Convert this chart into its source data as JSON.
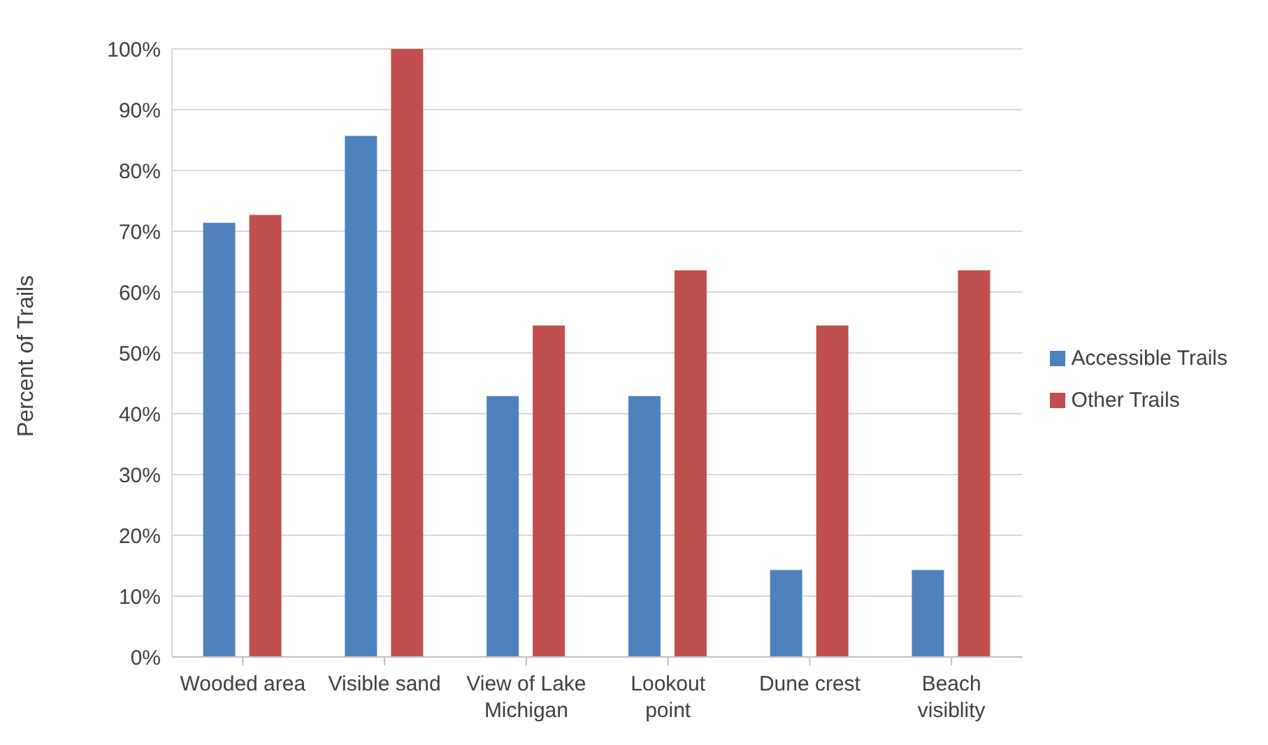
{
  "chart_data": {
    "type": "bar",
    "ylabel": "Percent of Trails",
    "categories": [
      "Wooded area",
      "Visible sand",
      "View of Lake Michigan",
      "Lookout point",
      "Dune crest",
      "Beach visiblity"
    ],
    "series": [
      {
        "name": "Accessible Trails",
        "color": "#4f81bd",
        "values": [
          71.4,
          85.7,
          42.9,
          42.9,
          14.3,
          14.3
        ]
      },
      {
        "name": "Other Trails",
        "color": "#c0504d",
        "values": [
          72.7,
          100,
          54.5,
          63.6,
          54.5,
          63.6
        ]
      }
    ],
    "ylim": [
      0,
      100
    ],
    "yticks": [
      {
        "value": 0,
        "label": "0%"
      },
      {
        "value": 10,
        "label": "10%"
      },
      {
        "value": 20,
        "label": "20%"
      },
      {
        "value": 30,
        "label": "30%"
      },
      {
        "value": 40,
        "label": "40%"
      },
      {
        "value": 50,
        "label": "50%"
      },
      {
        "value": 60,
        "label": "60%"
      },
      {
        "value": 70,
        "label": "70%"
      },
      {
        "value": 80,
        "label": "80%"
      },
      {
        "value": 90,
        "label": "90%"
      },
      {
        "value": 100,
        "label": "100%"
      }
    ],
    "grid": "y",
    "legend": "right"
  }
}
